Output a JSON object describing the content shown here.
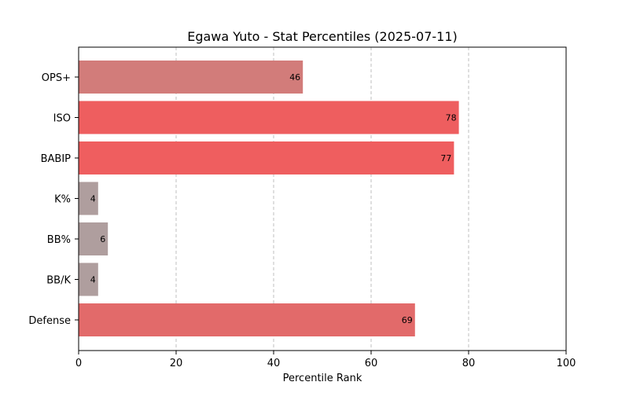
{
  "chart_data": {
    "type": "bar",
    "orientation": "horizontal",
    "title": "Egawa Yuto - Stat Percentiles (2025-07-11)",
    "xlabel": "Percentile Rank",
    "ylabel": "",
    "xlim": [
      0,
      100
    ],
    "xticks": [
      0,
      20,
      40,
      60,
      80,
      100
    ],
    "grid": "x-dashed",
    "categories": [
      "OPS+",
      "ISO",
      "BABIP",
      "K%",
      "BB%",
      "BB/K",
      "Defense"
    ],
    "values": [
      46,
      78,
      77,
      4,
      6,
      4,
      69
    ],
    "colors": [
      "#d27c7a",
      "#ee5e5f",
      "#ef5e5f",
      "#af9e9e",
      "#af9e9e",
      "#af9e9e",
      "#e26a6a"
    ]
  }
}
